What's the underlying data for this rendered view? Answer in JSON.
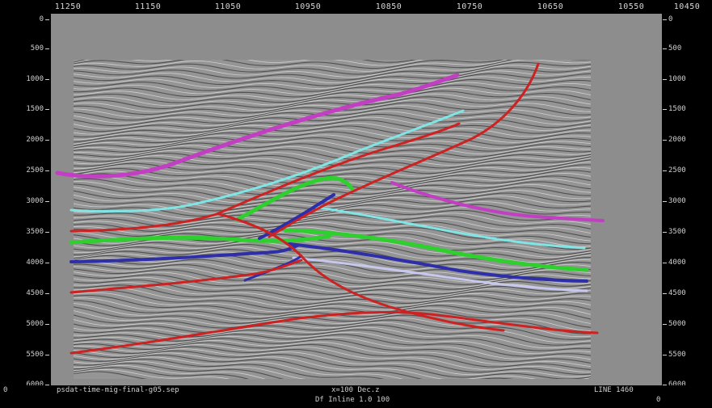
{
  "top_axis": {
    "labels": [
      "11250",
      "11150",
      "11050",
      "10950",
      "10850",
      "10750",
      "10650",
      "10550",
      "10450"
    ]
  },
  "left_axis": {
    "labels": [
      "0",
      "500",
      "1000",
      "1500",
      "2000",
      "2500",
      "3000",
      "3500",
      "4000",
      "4500",
      "5000",
      "5500",
      "6000"
    ]
  },
  "right_axis": {
    "labels": [
      "0",
      "500",
      "1000",
      "1500",
      "2000",
      "2500",
      "3000",
      "3500",
      "4000",
      "4500",
      "5000",
      "5500",
      "6000"
    ]
  },
  "status_bar": {
    "file": "psdat-time-mig-final-g05.sep",
    "scale": "x=100 Dec.z",
    "zoom": "Df Inline 1.0 100",
    "line": "LINE 1460",
    "left_marker": "0",
    "right_marker": "0"
  },
  "horizon_colors": {
    "magenta": "#c23ec2",
    "cyan": "#7fe5e5",
    "green": "#2fcf2f",
    "blue": "#2e2ea8",
    "red": "#cc2222",
    "lavender": "#c8c8ee"
  }
}
